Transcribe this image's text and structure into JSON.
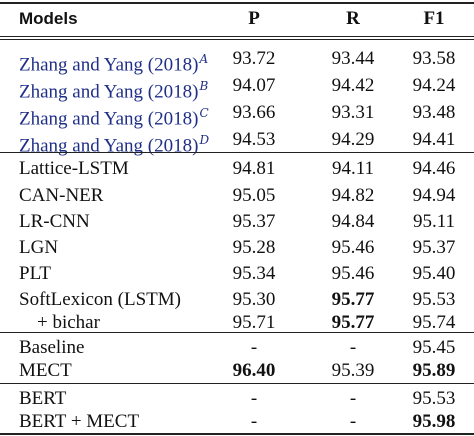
{
  "table": {
    "columns": [
      "Models",
      "P",
      "R",
      "F1"
    ],
    "groups": [
      {
        "rows": [
          {
            "model": "Zhang and Yang (2018)",
            "sup": "A",
            "cite": true,
            "p": "93.72",
            "r": "93.44",
            "f1": "93.58"
          },
          {
            "model": "Zhang and Yang (2018)",
            "sup": "B",
            "cite": true,
            "p": "94.07",
            "r": "94.42",
            "f1": "94.24"
          },
          {
            "model": "Zhang and Yang (2018)",
            "sup": "C",
            "cite": true,
            "p": "93.66",
            "r": "93.31",
            "f1": "93.48"
          },
          {
            "model": "Zhang and Yang (2018)",
            "sup": "D",
            "cite": true,
            "p": "94.53",
            "r": "94.29",
            "f1": "94.41"
          }
        ]
      },
      {
        "rows": [
          {
            "model": "Lattice-LSTM",
            "p": "94.81",
            "r": "94.11",
            "f1": "94.46"
          },
          {
            "model": "CAN-NER",
            "p": "95.05",
            "r": "94.82",
            "f1": "94.94"
          },
          {
            "model": "LR-CNN",
            "p": "95.37",
            "r": "94.84",
            "f1": "95.11"
          },
          {
            "model": "LGN",
            "p": "95.28",
            "r": "95.46",
            "f1": "95.37"
          },
          {
            "model": "PLT",
            "p": "95.34",
            "r": "95.46",
            "f1": "95.40"
          },
          {
            "model": "SoftLexicon (LSTM)",
            "p": "95.30",
            "r": "95.77",
            "r_bold": true,
            "f1": "95.53"
          },
          {
            "model": "+ bichar",
            "indent": true,
            "p": "95.71",
            "r": "95.77",
            "r_bold": true,
            "f1": "95.74"
          }
        ]
      },
      {
        "rows": [
          {
            "model": "Baseline",
            "p": "-",
            "r": "-",
            "f1": "95.45"
          },
          {
            "model": "MECT",
            "p": "96.40",
            "p_bold": true,
            "r": "95.39",
            "f1": "95.89",
            "f1_bold": true
          }
        ]
      },
      {
        "rows": [
          {
            "model": "BERT",
            "p": "-",
            "r": "-",
            "f1": "95.53"
          },
          {
            "model": "BERT + MECT",
            "p": "-",
            "r": "-",
            "f1": "95.98",
            "f1_bold": true
          }
        ]
      }
    ]
  }
}
